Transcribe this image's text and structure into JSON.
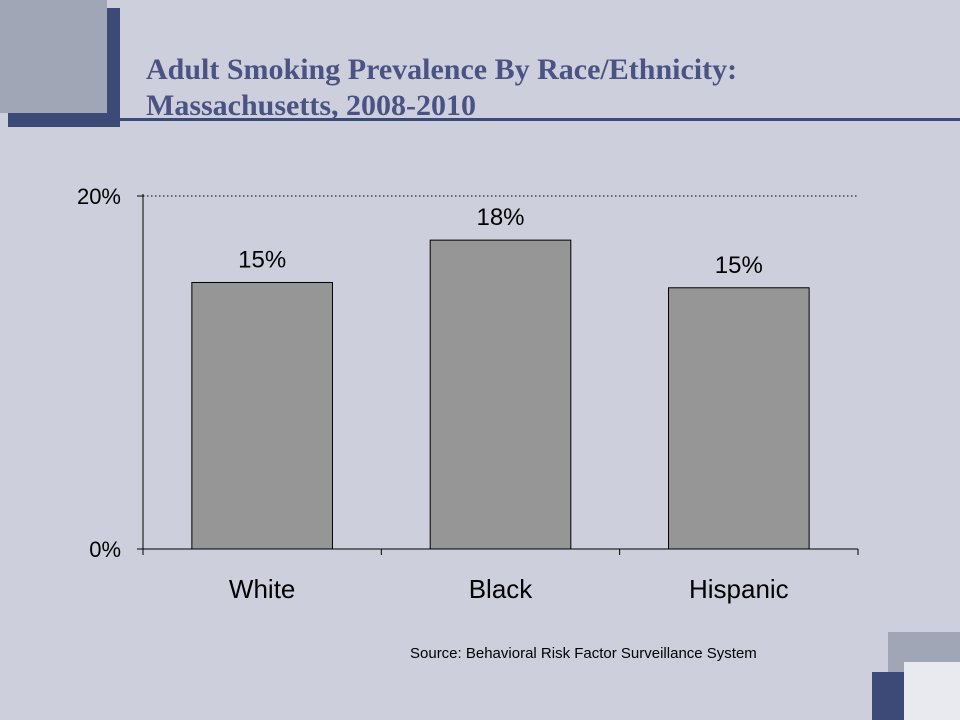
{
  "slide": {
    "title_line1": "Adult Smoking Prevalence By Race/Ethnicity:",
    "title_line2": "Massachusetts, 2008-2010",
    "source": "Source:  Behavioral Risk Factor Surveillance System"
  },
  "colors": {
    "background": "#cdd0dc",
    "accent_dark": "#3c4a78",
    "accent_light": "#a1a6b6",
    "title": "#4a5384",
    "bar": "#969696"
  },
  "chart_data": {
    "type": "bar",
    "categories": [
      "White",
      "Black",
      "Hispanic"
    ],
    "values": [
      15.1,
      17.5,
      14.8
    ],
    "data_labels": [
      "15%",
      "18%",
      "15%"
    ],
    "ylim": [
      0,
      20
    ],
    "yticks": [
      {
        "value": 0,
        "label": "0%"
      },
      {
        "value": 20,
        "label": "20%"
      }
    ],
    "gridline_at_max": true,
    "title": "",
    "xlabel": "",
    "ylabel": ""
  }
}
